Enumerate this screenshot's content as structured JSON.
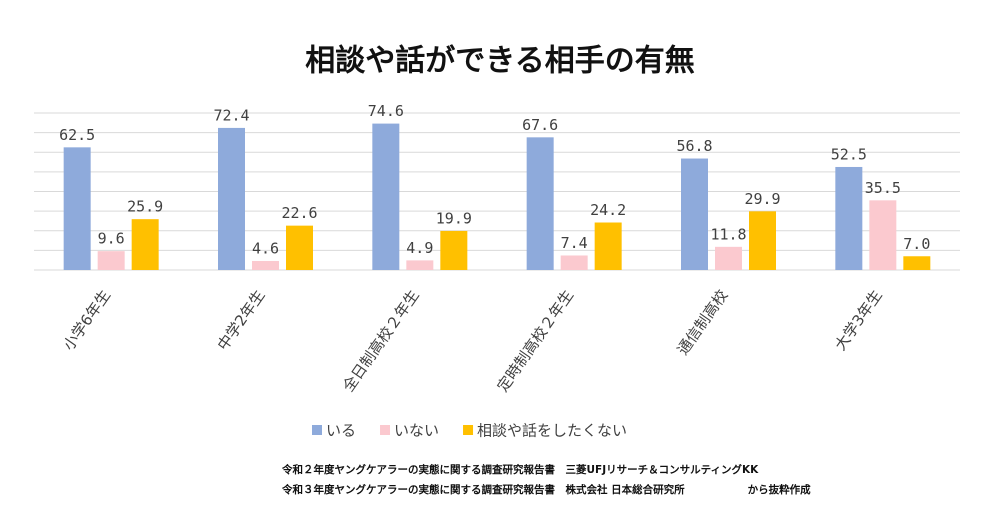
{
  "chart_data": {
    "type": "bar",
    "title": "相談や話ができる相手の有無",
    "categories": [
      "小学6年生",
      "中学2年生",
      "全日制高校２年生",
      "定時制高校２年生",
      "通信制高校",
      "大学3年生"
    ],
    "series": [
      {
        "name": "いる",
        "color": "#8eaadb",
        "values": [
          62.5,
          72.4,
          74.6,
          67.6,
          56.8,
          52.5
        ],
        "value_labels": [
          "62.5",
          "72.4",
          "74.6",
          "67.6",
          "56.8",
          "52.5"
        ]
      },
      {
        "name": "いない",
        "color": "#fbc9cf",
        "values": [
          9.6,
          4.6,
          4.9,
          7.4,
          11.8,
          35.5
        ],
        "value_labels": [
          "9.6",
          "4.6",
          "4.9",
          "7.4",
          "11.8",
          "35.5"
        ]
      },
      {
        "name": "相談や話をしたくない",
        "color": "#ffc000",
        "values": [
          25.9,
          22.6,
          19.9,
          24.2,
          29.9,
          7
        ],
        "value_labels": [
          "25.9",
          "22.6",
          "19.9",
          "24.2",
          "29.9",
          "7.0"
        ]
      }
    ],
    "ylim": [
      0,
      80
    ],
    "yticks": [
      0,
      10,
      20,
      30,
      40,
      50,
      60,
      70,
      80
    ],
    "grid": true,
    "legend": "bottom",
    "notes": [
      "令和２年度ヤングケアラーの実態に関する調査研究報告書　三菱UFJリサーチ＆コンサルティングKK",
      "令和３年度ヤングケアラーの実態に関する調査研究報告書　株式会社 日本総合研究所　　　　　　から抜粋作成"
    ]
  }
}
